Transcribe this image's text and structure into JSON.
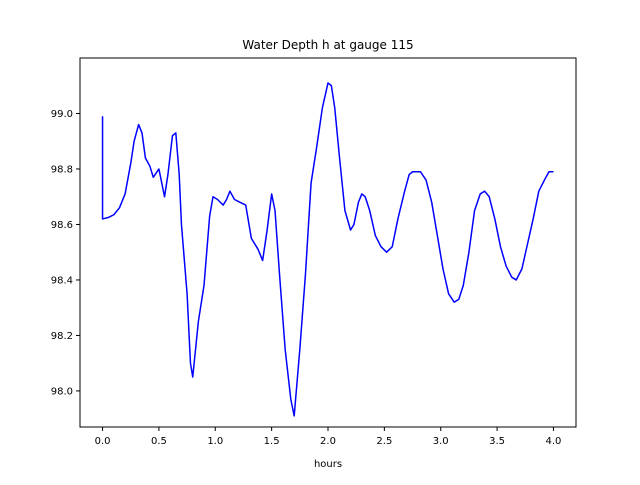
{
  "chart_data": {
    "type": "line",
    "title": "Water Depth h at gauge 115",
    "xlabel": "hours",
    "ylabel": "",
    "xlim": [
      -0.2,
      4.2
    ],
    "ylim": [
      97.87,
      99.2
    ],
    "xticks": [
      0.0,
      0.5,
      1.0,
      1.5,
      2.0,
      2.5,
      3.0,
      3.5,
      4.0
    ],
    "xtick_labels": [
      "0.0",
      "0.5",
      "1.0",
      "1.5",
      "2.0",
      "2.5",
      "3.0",
      "3.5",
      "4.0"
    ],
    "yticks": [
      98.0,
      98.2,
      98.4,
      98.6,
      98.8,
      99.0
    ],
    "ytick_labels": [
      "98.0",
      "98.2",
      "98.4",
      "98.6",
      "98.8",
      "99.0"
    ],
    "grid": false,
    "series": [
      {
        "color": "#0000ff",
        "x": [
          0.0,
          0.0,
          0.05,
          0.1,
          0.15,
          0.2,
          0.25,
          0.28,
          0.32,
          0.35,
          0.38,
          0.42,
          0.45,
          0.5,
          0.52,
          0.55,
          0.58,
          0.62,
          0.65,
          0.68,
          0.7,
          0.75,
          0.78,
          0.8,
          0.85,
          0.9,
          0.95,
          0.98,
          1.02,
          1.07,
          1.1,
          1.13,
          1.17,
          1.22,
          1.27,
          1.32,
          1.38,
          1.42,
          1.46,
          1.5,
          1.53,
          1.57,
          1.62,
          1.67,
          1.7,
          1.75,
          1.8,
          1.85,
          1.9,
          1.95,
          2.0,
          2.03,
          2.06,
          2.1,
          2.15,
          2.2,
          2.23,
          2.27,
          2.3,
          2.33,
          2.37,
          2.42,
          2.47,
          2.52,
          2.57,
          2.62,
          2.68,
          2.72,
          2.75,
          2.78,
          2.82,
          2.87,
          2.92,
          2.97,
          3.02,
          3.07,
          3.12,
          3.16,
          3.2,
          3.25,
          3.3,
          3.35,
          3.39,
          3.43,
          3.48,
          3.53,
          3.58,
          3.63,
          3.67,
          3.72,
          3.77,
          3.82,
          3.87,
          3.92,
          3.96,
          4.0
        ],
        "y": [
          98.99,
          98.62,
          98.625,
          98.635,
          98.66,
          98.71,
          98.82,
          98.9,
          98.96,
          98.93,
          98.84,
          98.81,
          98.77,
          98.8,
          98.76,
          98.7,
          98.78,
          98.92,
          98.93,
          98.78,
          98.6,
          98.35,
          98.1,
          98.05,
          98.25,
          98.38,
          98.63,
          98.7,
          98.69,
          98.67,
          98.69,
          98.72,
          98.69,
          98.68,
          98.67,
          98.55,
          98.51,
          98.47,
          98.58,
          98.71,
          98.65,
          98.42,
          98.15,
          97.97,
          97.91,
          98.15,
          98.42,
          98.75,
          98.88,
          99.02,
          99.11,
          99.1,
          99.02,
          98.85,
          98.65,
          98.58,
          98.6,
          98.68,
          98.71,
          98.7,
          98.65,
          98.56,
          98.52,
          98.5,
          98.52,
          98.62,
          98.72,
          98.78,
          98.79,
          98.79,
          98.79,
          98.76,
          98.68,
          98.56,
          98.44,
          98.35,
          98.32,
          98.33,
          98.38,
          98.5,
          98.65,
          98.71,
          98.72,
          98.7,
          98.62,
          98.52,
          98.45,
          98.41,
          98.4,
          98.44,
          98.53,
          98.62,
          98.72,
          98.76,
          98.79,
          98.79
        ]
      }
    ]
  }
}
